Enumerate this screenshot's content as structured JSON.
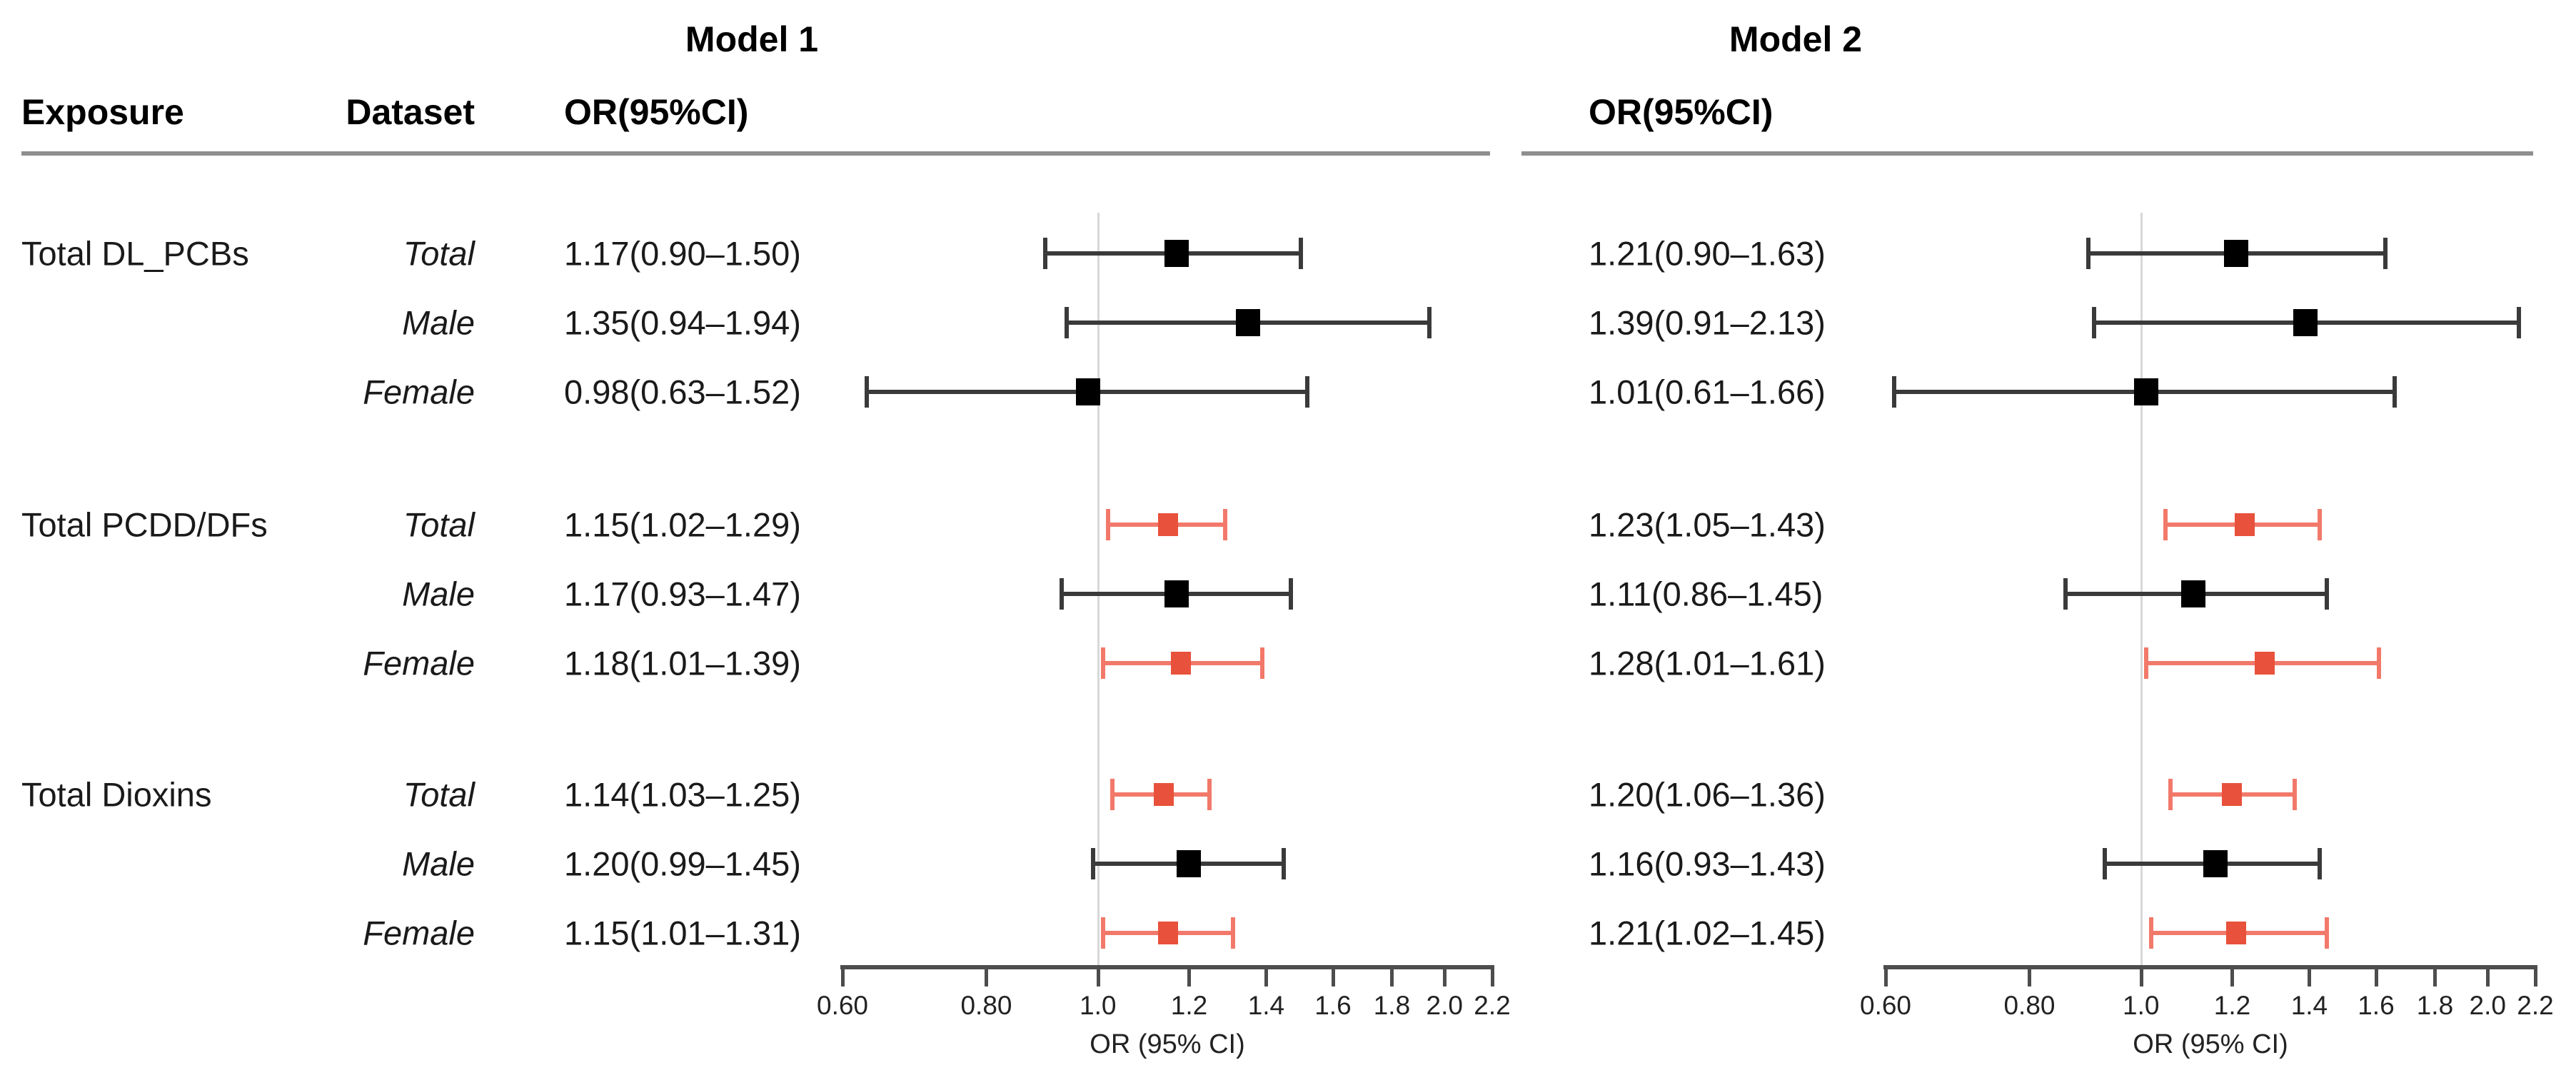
{
  "figure": {
    "headers": {
      "exposure": "Exposure",
      "dataset": "Dataset"
    },
    "models": [
      {
        "title": "Model 1",
        "or_header": "OR(95%CI)"
      },
      {
        "title": "Model 2",
        "or_header": "OR(95%CI)"
      }
    ]
  },
  "colors": {
    "significant_marker": "#e8513b",
    "significant_line": "#f2796a",
    "marker": "#000000",
    "line": "#3a3a3a",
    "reference_line": "#d8d8d8",
    "axis": "#4d4d4d",
    "header_rule": "#8f8f8f"
  },
  "chart_data": {
    "type": "scatter",
    "variant": "forest-plot",
    "panels": [
      "Model 1",
      "Model 2"
    ],
    "xscale": "log",
    "xlim": [
      0.6,
      2.2
    ],
    "x_ticks": [
      0.6,
      0.8,
      1.0,
      1.2,
      1.4,
      1.6,
      1.8,
      2.0,
      2.2
    ],
    "x_tick_labels": [
      "0.60",
      "0.80",
      "1.0",
      "1.2",
      "1.4",
      "1.6",
      "1.8",
      "2.0",
      "2.2"
    ],
    "xlabel": "OR (95% CI)",
    "reference_line": 1.0,
    "grid": false,
    "groups": [
      {
        "exposure": "Total DL_PCBs",
        "rows": [
          {
            "dataset": "Total",
            "model1": {
              "label": "1.17(0.90–1.50)",
              "or": 1.17,
              "ci_low": 0.9,
              "ci_high": 1.5
            },
            "model2": {
              "label": "1.21(0.90–1.63)",
              "or": 1.21,
              "ci_low": 0.9,
              "ci_high": 1.63
            }
          },
          {
            "dataset": "Male",
            "model1": {
              "label": "1.35(0.94–1.94)",
              "or": 1.35,
              "ci_low": 0.94,
              "ci_high": 1.94
            },
            "model2": {
              "label": "1.39(0.91–2.13)",
              "or": 1.39,
              "ci_low": 0.91,
              "ci_high": 2.13
            }
          },
          {
            "dataset": "Female",
            "model1": {
              "label": "0.98(0.63–1.52)",
              "or": 0.98,
              "ci_low": 0.63,
              "ci_high": 1.52
            },
            "model2": {
              "label": "1.01(0.61–1.66)",
              "or": 1.01,
              "ci_low": 0.61,
              "ci_high": 1.66
            }
          }
        ]
      },
      {
        "exposure": "Total PCDD/DFs",
        "rows": [
          {
            "dataset": "Total",
            "model1": {
              "label": "1.15(1.02–1.29)",
              "or": 1.15,
              "ci_low": 1.02,
              "ci_high": 1.29
            },
            "model2": {
              "label": "1.23(1.05–1.43)",
              "or": 1.23,
              "ci_low": 1.05,
              "ci_high": 1.43
            }
          },
          {
            "dataset": "Male",
            "model1": {
              "label": "1.17(0.93–1.47)",
              "or": 1.17,
              "ci_low": 0.93,
              "ci_high": 1.47
            },
            "model2": {
              "label": "1.11(0.86–1.45)",
              "or": 1.11,
              "ci_low": 0.86,
              "ci_high": 1.45
            }
          },
          {
            "dataset": "Female",
            "model1": {
              "label": "1.18(1.01–1.39)",
              "or": 1.18,
              "ci_low": 1.01,
              "ci_high": 1.39
            },
            "model2": {
              "label": "1.28(1.01–1.61)",
              "or": 1.28,
              "ci_low": 1.01,
              "ci_high": 1.61
            }
          }
        ]
      },
      {
        "exposure": "Total Dioxins",
        "rows": [
          {
            "dataset": "Total",
            "model1": {
              "label": "1.14(1.03–1.25)",
              "or": 1.14,
              "ci_low": 1.03,
              "ci_high": 1.25
            },
            "model2": {
              "label": "1.20(1.06–1.36)",
              "or": 1.2,
              "ci_low": 1.06,
              "ci_high": 1.36
            }
          },
          {
            "dataset": "Male",
            "model1": {
              "label": "1.20(0.99–1.45)",
              "or": 1.2,
              "ci_low": 0.99,
              "ci_high": 1.45
            },
            "model2": {
              "label": "1.16(0.93–1.43)",
              "or": 1.16,
              "ci_low": 0.93,
              "ci_high": 1.43
            }
          },
          {
            "dataset": "Female",
            "model1": {
              "label": "1.15(1.01–1.31)",
              "or": 1.15,
              "ci_low": 1.01,
              "ci_high": 1.31
            },
            "model2": {
              "label": "1.21(1.02–1.45)",
              "or": 1.21,
              "ci_low": 1.02,
              "ci_high": 1.45
            }
          }
        ]
      }
    ]
  }
}
